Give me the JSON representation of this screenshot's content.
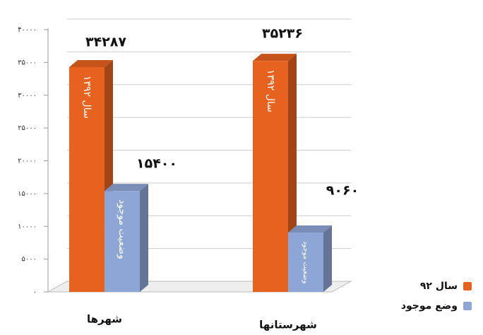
{
  "chart_data": {
    "type": "bar3d",
    "categories": [
      "شهرها",
      "شهرستانها"
    ],
    "series": [
      {
        "name": "سال ۹۲",
        "color": "#e8621f",
        "bar_text": "سال ۱۳۹۲",
        "values": [
          34287,
          35236
        ],
        "value_labels": [
          "۳۴۲۸۷",
          "۳۵۲۳۶"
        ]
      },
      {
        "name": "وضع موجود",
        "color": "#8ea6d6",
        "bar_text": "وضعیت موجود",
        "values": [
          15400,
          9060
        ],
        "value_labels": [
          "۱۵۴۰۰",
          "۹۰۶۰"
        ]
      }
    ],
    "ylim": [
      0,
      40000
    ],
    "yticks": [
      {
        "value": 0,
        "label": "۰"
      },
      {
        "value": 5000,
        "label": "۵۰۰۰"
      },
      {
        "value": 10000,
        "label": "۱۰۰۰۰"
      },
      {
        "value": 15000,
        "label": "۱۵۰۰۰"
      },
      {
        "value": 20000,
        "label": "۲۰۰۰۰"
      },
      {
        "value": 25000,
        "label": "۲۵۰۰۰"
      },
      {
        "value": 30000,
        "label": "۳۰۰۰۰"
      },
      {
        "value": 35000,
        "label": "۳۵۰۰۰"
      },
      {
        "value": 40000,
        "label": "۴۰۰۰۰"
      }
    ],
    "grid": true,
    "legend": "bottom-right"
  }
}
